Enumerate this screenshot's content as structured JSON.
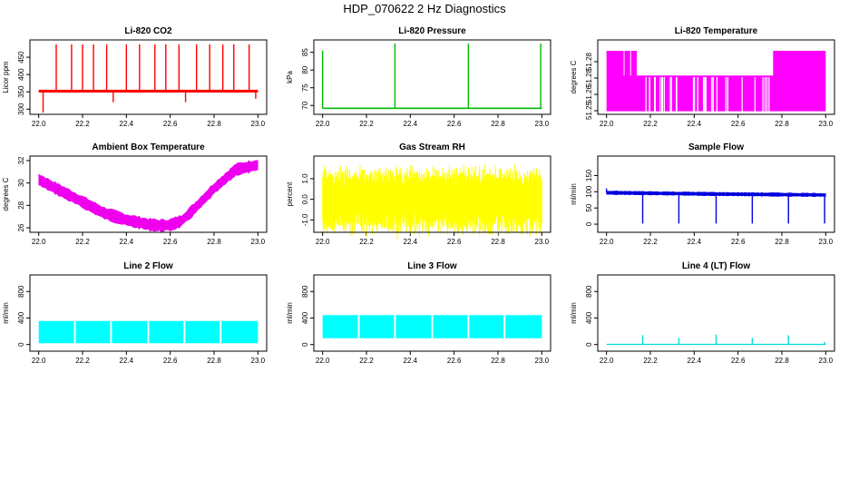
{
  "page": {
    "title": "HDP_070622 2 Hz Diagnostics"
  },
  "chart_data": [
    {
      "type": "line",
      "title": "Li-820 CO2",
      "xlabel": "",
      "ylabel": "Licor ppm",
      "color": "#ff0000",
      "xlim": [
        21.96,
        23.04
      ],
      "ylim": [
        285,
        500
      ],
      "x_ticks": [
        "22.0",
        "22.2",
        "22.4",
        "22.6",
        "22.8",
        "23.0"
      ],
      "y_ticks": [
        "300",
        "350",
        "400",
        "450"
      ],
      "x": [
        22.0,
        22.1,
        22.2,
        22.3,
        22.4,
        22.5,
        22.6,
        22.7,
        22.8,
        22.9,
        23.0
      ],
      "series": [
        {
          "values": [
            352,
            352,
            352,
            351,
            352,
            352,
            351,
            351,
            352,
            352,
            352
          ],
          "band": [
            348,
            356
          ]
        }
      ],
      "spikes": [
        {
          "x": 22.02,
          "to": 290
        },
        {
          "x": 22.08,
          "to": 487
        },
        {
          "x": 22.15,
          "to": 487
        },
        {
          "x": 22.2,
          "to": 487
        },
        {
          "x": 22.25,
          "to": 487
        },
        {
          "x": 22.31,
          "to": 487
        },
        {
          "x": 22.34,
          "to": 320
        },
        {
          "x": 22.4,
          "to": 487
        },
        {
          "x": 22.46,
          "to": 487
        },
        {
          "x": 22.53,
          "to": 487
        },
        {
          "x": 22.58,
          "to": 487
        },
        {
          "x": 22.64,
          "to": 487
        },
        {
          "x": 22.67,
          "to": 320
        },
        {
          "x": 22.72,
          "to": 487
        },
        {
          "x": 22.78,
          "to": 487
        },
        {
          "x": 22.84,
          "to": 487
        },
        {
          "x": 22.89,
          "to": 487
        },
        {
          "x": 22.96,
          "to": 487
        },
        {
          "x": 22.99,
          "to": 330
        }
      ]
    },
    {
      "type": "line",
      "title": "Li-820 Pressure",
      "xlabel": "",
      "ylabel": "kPa",
      "color": "#00bb00",
      "xlim": [
        21.96,
        23.04
      ],
      "ylim": [
        67.5,
        88.5
      ],
      "x_ticks": [
        "22.0",
        "22.2",
        "22.4",
        "22.6",
        "22.8",
        "23.0"
      ],
      "y_ticks": [
        "70",
        "75",
        "80",
        "85"
      ],
      "x": [
        22.0,
        23.0
      ],
      "series": [
        {
          "values": [
            69.2,
            69.2
          ],
          "band": [
            69.0,
            69.4
          ]
        }
      ],
      "spikes": [
        {
          "x": 22.0,
          "to": 85.5
        },
        {
          "x": 22.33,
          "to": 87.5
        },
        {
          "x": 22.665,
          "to": 87.5
        },
        {
          "x": 22.995,
          "to": 87.5
        }
      ]
    },
    {
      "type": "line",
      "title": "Li-820 Temperature",
      "xlabel": "",
      "ylabel": "degrees C",
      "color": "#ff00ff",
      "xlim": [
        21.96,
        23.04
      ],
      "ylim": [
        51.248,
        51.296
      ],
      "x_ticks": [
        "22.0",
        "22.2",
        "22.4",
        "22.6",
        "22.8",
        "23.0"
      ],
      "y_ticks": [
        "51.25",
        "51.26",
        "51.28",
        "51.28"
      ],
      "x": [
        22.0,
        22.15,
        22.77,
        23.0
      ],
      "series": [
        {
          "values": [
            51.268,
            51.268,
            51.268,
            51.268
          ],
          "band": [
            51.25,
            51.289
          ],
          "upper_step": [
            [
              22.0,
              51.289
            ],
            [
              22.14,
              51.289
            ],
            [
              22.14,
              51.273
            ],
            [
              22.76,
              51.273
            ],
            [
              22.76,
              51.289
            ],
            [
              23.0,
              51.289
            ]
          ]
        }
      ]
    },
    {
      "type": "line",
      "title": "Ambient Box Temperature",
      "xlabel": "",
      "ylabel": "degrees C",
      "color": "#ee00ee",
      "xlim": [
        21.96,
        23.04
      ],
      "ylim": [
        25.6,
        32.4
      ],
      "x_ticks": [
        "22.0",
        "22.2",
        "22.4",
        "22.6",
        "22.8",
        "23.0"
      ],
      "y_ticks": [
        "26",
        "28",
        "30",
        "32"
      ],
      "x": [
        22.0,
        22.1,
        22.2,
        22.3,
        22.4,
        22.5,
        22.55,
        22.6,
        22.65,
        22.7,
        22.8,
        22.9,
        23.0
      ],
      "series": [
        {
          "values": [
            30.3,
            29.3,
            28.3,
            27.3,
            26.7,
            26.3,
            26.2,
            26.25,
            26.6,
            27.5,
            29.5,
            31.2,
            31.6
          ],
          "band_half": 0.5
        }
      ]
    },
    {
      "type": "line",
      "title": "Gas Stream RH",
      "xlabel": "",
      "ylabel": "percent",
      "color": "#ffff00",
      "xlim": [
        21.96,
        23.04
      ],
      "ylim": [
        -1.6,
        2.1
      ],
      "x_ticks": [
        "22.0",
        "22.2",
        "22.4",
        "22.6",
        "22.8",
        "23.0"
      ],
      "y_ticks": [
        "-1.0",
        "0.0",
        "1.0"
      ],
      "x": [
        22.0,
        23.0
      ],
      "series": [
        {
          "values": [
            0.0,
            0.0
          ],
          "band": [
            -0.9,
            0.8
          ]
        }
      ]
    },
    {
      "type": "line",
      "title": "Sample Flow",
      "xlabel": "",
      "ylabel": "ml/min",
      "color": "#0000dd",
      "xlim": [
        21.96,
        23.04
      ],
      "ylim": [
        -25,
        210
      ],
      "x_ticks": [
        "22.0",
        "22.2",
        "22.4",
        "22.6",
        "22.8",
        "23.0"
      ],
      "y_ticks": [
        "0",
        "50",
        "100",
        "150"
      ],
      "x": [
        22.0,
        22.5,
        23.0
      ],
      "series": [
        {
          "values": [
            97,
            93,
            90
          ],
          "band_half": 5
        }
      ],
      "spikes": [
        {
          "x": 22.0,
          "to": 110
        },
        {
          "x": 22.165,
          "to": 2
        },
        {
          "x": 22.33,
          "to": 2
        },
        {
          "x": 22.5,
          "to": 2
        },
        {
          "x": 22.665,
          "to": 2
        },
        {
          "x": 22.83,
          "to": 2
        },
        {
          "x": 22.995,
          "to": 2
        }
      ]
    },
    {
      "type": "area",
      "title": "Line 2 Flow",
      "xlabel": "",
      "ylabel": "ml/min",
      "color": "#00ffff",
      "xlim": [
        21.96,
        23.04
      ],
      "ylim": [
        -100,
        1050
      ],
      "x_ticks": [
        "22.0",
        "22.2",
        "22.4",
        "22.6",
        "22.8",
        "23.0"
      ],
      "y_ticks": [
        "0",
        "400",
        "800"
      ],
      "x": [
        22.0,
        23.0
      ],
      "series": [
        {
          "values": [
            190,
            190
          ],
          "band": [
            20,
            355
          ]
        }
      ],
      "gaps": [
        22.165,
        22.33,
        22.5,
        22.665,
        22.83
      ]
    },
    {
      "type": "area",
      "title": "Line 3 Flow",
      "xlabel": "",
      "ylabel": "ml/min",
      "color": "#00ffff",
      "xlim": [
        21.96,
        23.04
      ],
      "ylim": [
        -100,
        1050
      ],
      "x_ticks": [
        "22.0",
        "22.2",
        "22.4",
        "22.6",
        "22.8",
        "23.0"
      ],
      "y_ticks": [
        "0",
        "400",
        "800"
      ],
      "x": [
        22.0,
        23.0
      ],
      "series": [
        {
          "values": [
            270,
            270
          ],
          "band": [
            95,
            445
          ]
        }
      ],
      "gaps": [
        22.165,
        22.33,
        22.5,
        22.665,
        22.83
      ]
    },
    {
      "type": "line",
      "title": "Line 4 (LT) Flow",
      "xlabel": "",
      "ylabel": "ml/min",
      "color": "#00dddd",
      "xlim": [
        21.96,
        23.04
      ],
      "ylim": [
        -100,
        1050
      ],
      "x_ticks": [
        "22.0",
        "22.2",
        "22.4",
        "22.6",
        "22.8",
        "23.0"
      ],
      "y_ticks": [
        "0",
        "400",
        "800"
      ],
      "x": [
        22.0,
        23.0
      ],
      "series": [
        {
          "values": [
            3,
            3
          ]
        }
      ],
      "spikes": [
        {
          "x": 22.165,
          "to": 140
        },
        {
          "x": 22.33,
          "to": 100
        },
        {
          "x": 22.5,
          "to": 150
        },
        {
          "x": 22.665,
          "to": 100
        },
        {
          "x": 22.83,
          "to": 140
        },
        {
          "x": 22.995,
          "to": 40
        }
      ]
    }
  ]
}
